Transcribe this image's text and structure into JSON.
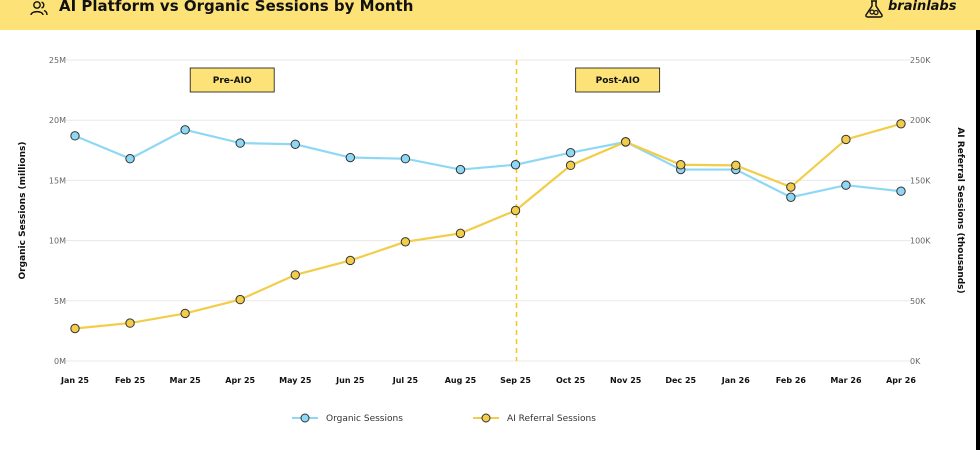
{
  "header": {
    "title": "AI Platform vs Organic Sessions by Month",
    "brand": "brainlabs",
    "icon": "users-icon",
    "brand_icon": "brain-flask-icon",
    "background": "#fde377"
  },
  "chart_data": {
    "type": "line",
    "categories": [
      "Jan 25",
      "Feb 25",
      "Mar 25",
      "Apr 25",
      "May 25",
      "Jun 25",
      "Jul 25",
      "Aug 25",
      "Sep 25",
      "Oct 25",
      "Nov 25",
      "Dec 25",
      "Jan 26",
      "Feb 26",
      "Mar 26",
      "Apr 26"
    ],
    "series": [
      {
        "name": "Organic Sessions",
        "axis": "left",
        "color": "#8ed8f5",
        "values": [
          18.7,
          16.8,
          19.2,
          18.1,
          18.0,
          16.9,
          16.8,
          15.9,
          16.3,
          17.3,
          18.2,
          15.9,
          15.9,
          13.6,
          14.6,
          14.1
        ]
      },
      {
        "name": "AI Referral Sessions",
        "axis": "right",
        "color": "#f2cd49",
        "values": [
          27,
          31.5,
          39.5,
          51,
          71.5,
          83.5,
          99,
          106,
          125,
          162.5,
          182,
          163,
          162.5,
          144.5,
          184,
          197
        ]
      }
    ],
    "ylabel": "Organic Sessions (millions)",
    "y2label": "AI Referral Sessions (thousands)",
    "ylim": [
      0,
      25
    ],
    "y2lim": [
      0,
      250
    ],
    "yticks": [
      "0M",
      "5M",
      "10M",
      "15M",
      "20M",
      "25M"
    ],
    "y2ticks": [
      "0K",
      "50K",
      "100K",
      "150K",
      "200K",
      "250K"
    ],
    "grid": true,
    "legend_position": "bottom",
    "annotations": [
      {
        "label": "Pre-AIO",
        "category": "Apr 25"
      },
      {
        "label": "Post-AIO",
        "category": "Nov 25"
      }
    ],
    "divider_category": "Sep 25"
  }
}
